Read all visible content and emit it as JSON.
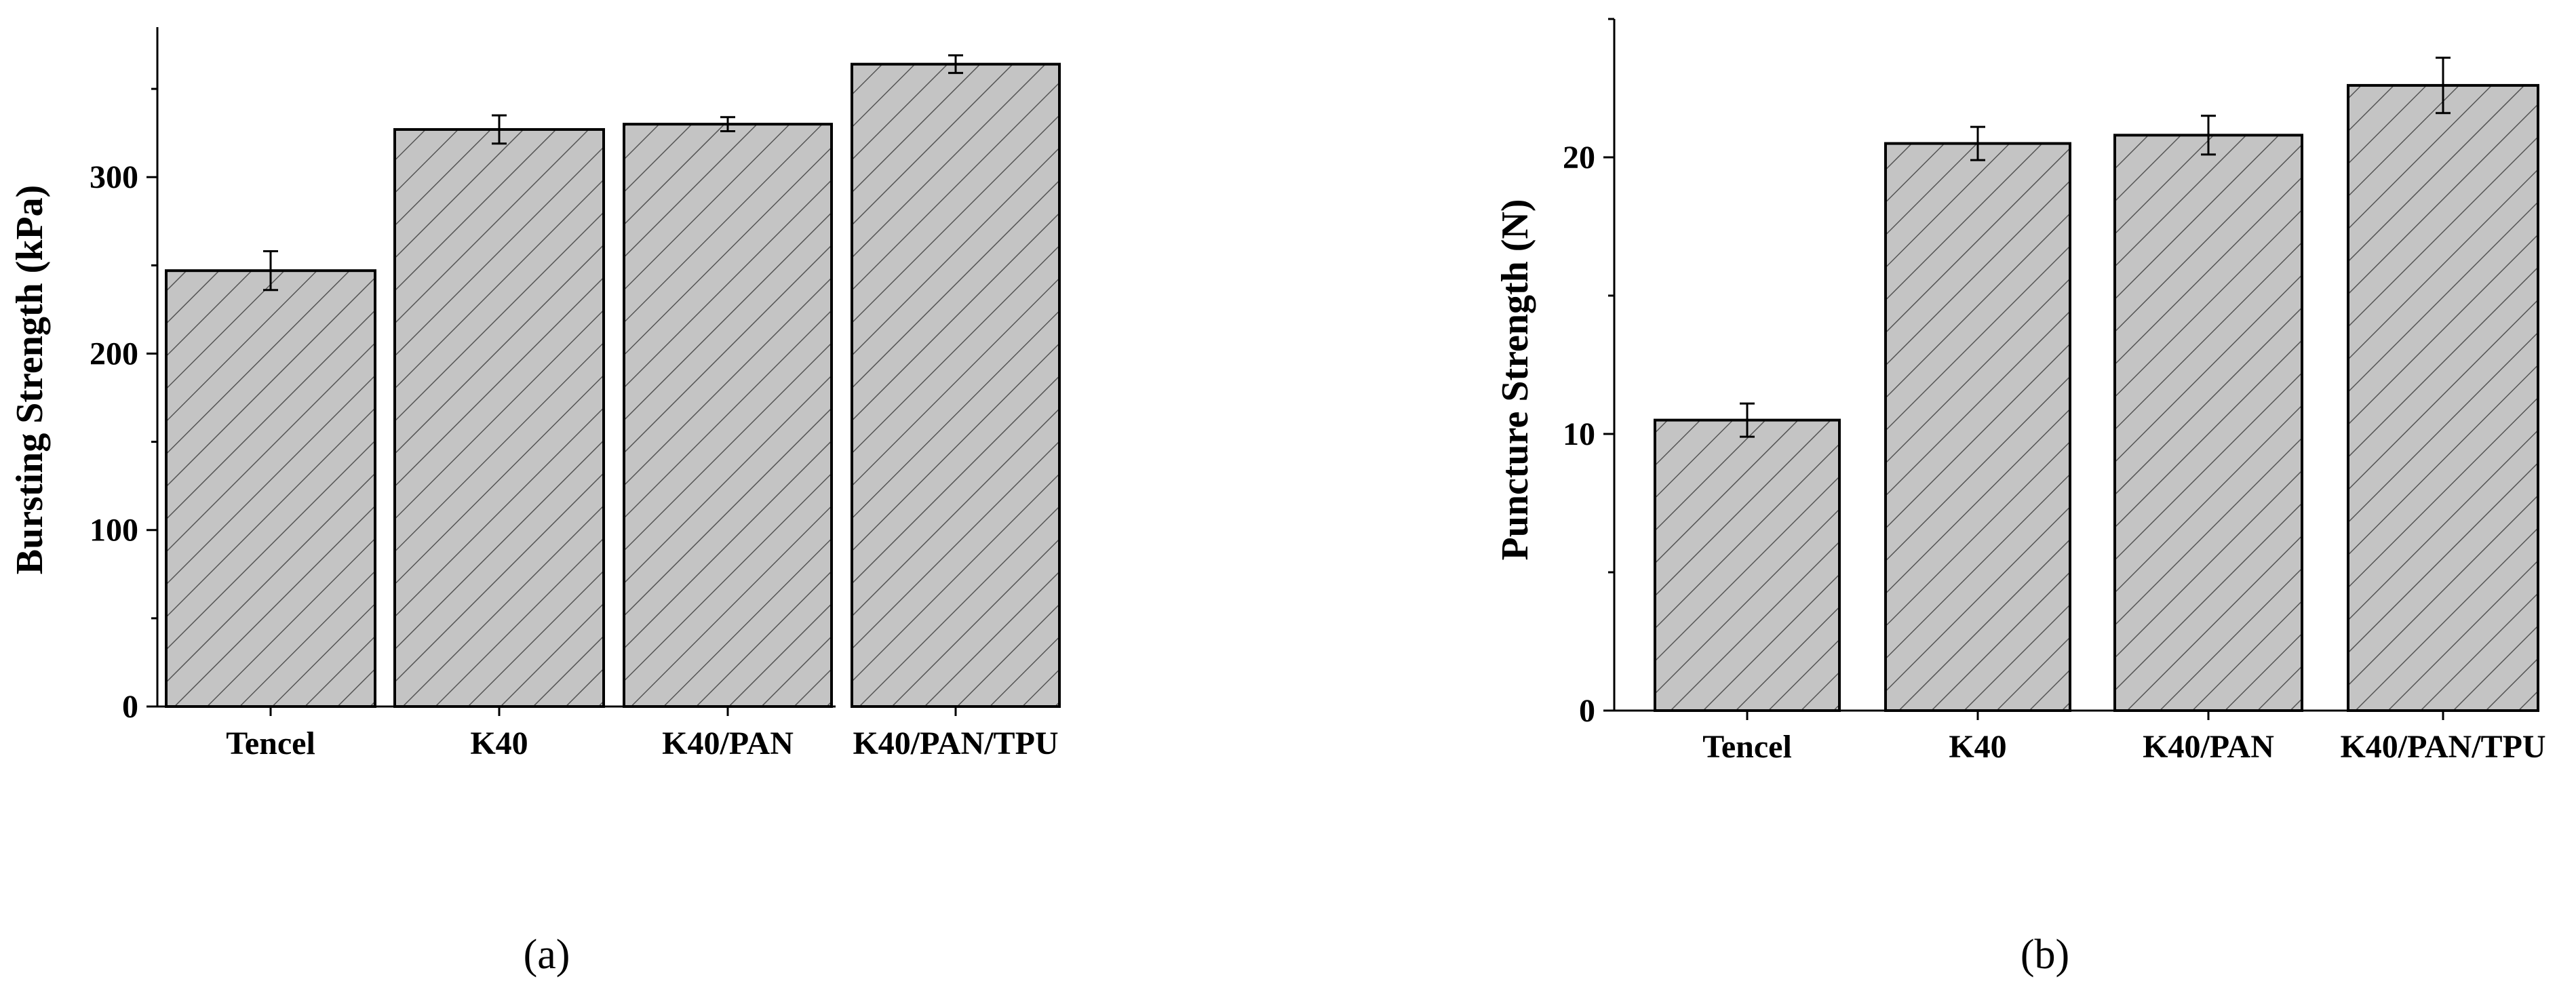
{
  "figure": {
    "panel_labels": [
      "(a)",
      "(b)"
    ]
  },
  "colors": {
    "bar_fill": "#c4c4c4",
    "hatch": "#555555",
    "stroke": "#000000"
  },
  "chart_data": [
    {
      "type": "bar",
      "panel": "(a)",
      "categories": [
        "Tencel",
        "K40",
        "K40/PAN",
        "K40/PAN/TPU"
      ],
      "values": [
        247,
        327,
        330,
        364
      ],
      "errors": [
        11,
        8,
        4,
        5
      ],
      "xlabel": "",
      "ylabel": "Bursting Strength (kPa)",
      "ylim": [
        0,
        385
      ],
      "yticks": [
        0,
        100,
        200,
        300
      ],
      "minor_ticks": [
        50,
        150,
        250,
        350
      ],
      "grid": false,
      "hatch": "diagonal"
    },
    {
      "type": "bar",
      "panel": "(b)",
      "categories": [
        "Tencel",
        "K40",
        "K40/PAN",
        "K40/PAN/TPU"
      ],
      "values": [
        10.5,
        20.5,
        20.8,
        22.6
      ],
      "errors": [
        0.6,
        0.6,
        0.7,
        1.0
      ],
      "xlabel": "",
      "ylabel": "Puncture Strength (N)",
      "ylim": [
        0,
        25
      ],
      "yticks": [
        0,
        10,
        20
      ],
      "minor_ticks": [
        5,
        15,
        25
      ],
      "grid": false,
      "hatch": "diagonal"
    }
  ]
}
